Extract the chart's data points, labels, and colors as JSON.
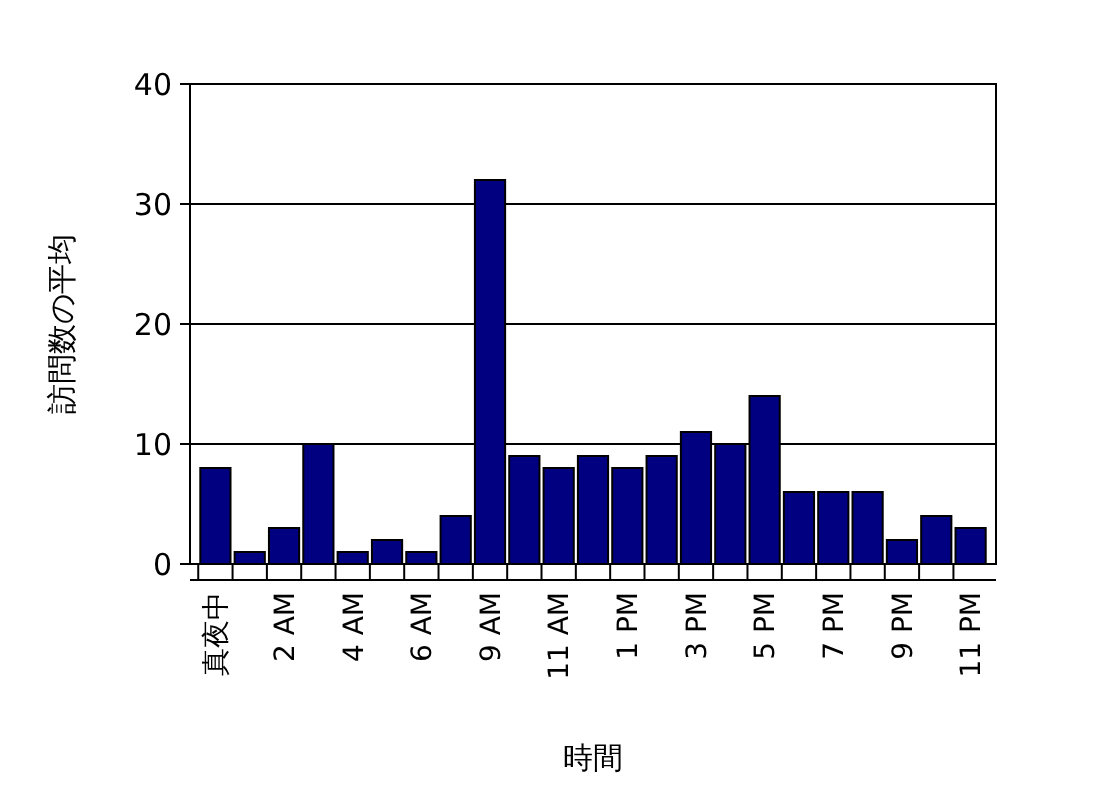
{
  "chart_data": {
    "type": "bar",
    "xlabel": "時間",
    "ylabel": "訪問数の平均",
    "categories": [
      "真夜中",
      null,
      "2 AM",
      null,
      "4 AM",
      null,
      "6 AM",
      null,
      "9 AM",
      null,
      "11 AM",
      null,
      "1 PM",
      null,
      "3 PM",
      null,
      "5 PM",
      null,
      "7 PM",
      null,
      "9 PM",
      null,
      "11 PM"
    ],
    "values": [
      8,
      1,
      3,
      10,
      1,
      2,
      1,
      4,
      32,
      9,
      8,
      9,
      8,
      9,
      11,
      10,
      14,
      6,
      6,
      6,
      2,
      4,
      3
    ],
    "color": "#000080",
    "ylim": [
      0,
      40
    ],
    "yticks": [
      0,
      10,
      20,
      30,
      40
    ],
    "grid": "y"
  }
}
